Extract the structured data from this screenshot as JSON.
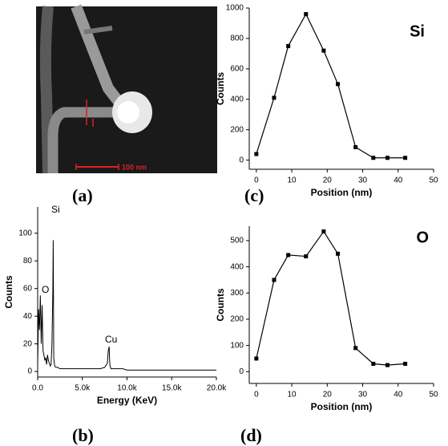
{
  "image_panel": {
    "scale_bar_label": "100 nm",
    "panel_label": "(a)"
  },
  "chart_data": [
    {
      "type": "line",
      "panel_label": "(b)",
      "xlabel": "Energy (KeV)",
      "ylabel": "Counts",
      "x": [
        0,
        100,
        200,
        300,
        400,
        500,
        600,
        700,
        800,
        900,
        1000,
        1100,
        1200,
        1300,
        1400,
        1500,
        1600,
        1700,
        1740,
        1800,
        1900,
        2000,
        2200,
        2500,
        3000,
        3500,
        4000,
        4500,
        5000,
        5500,
        6000,
        6500,
        7000,
        7500,
        7800,
        7900,
        8000,
        8050,
        8100,
        8200,
        8400,
        8800,
        9500,
        10000,
        11000,
        12000,
        13000,
        14000,
        15000,
        16000,
        17000,
        18000,
        19000,
        20000
      ],
      "series": [
        {
          "color": "#000000",
          "marker": false,
          "values": [
            5,
            45,
            30,
            55,
            20,
            48,
            15,
            12,
            8,
            10,
            5,
            12,
            8,
            6,
            4,
            5,
            20,
            60,
            95,
            10,
            4,
            3,
            3,
            2,
            2,
            2,
            2,
            2,
            2,
            2,
            2,
            2,
            2,
            3,
            6,
            15,
            18,
            8,
            4,
            2,
            2,
            2,
            2,
            1,
            1,
            1,
            1,
            1,
            1,
            1,
            1,
            1,
            1,
            1
          ]
        }
      ],
      "annotations": [
        "Si",
        "O",
        "Cu"
      ],
      "xlim": [
        0,
        20000
      ],
      "ylim": [
        -4,
        119
      ],
      "xticks": [
        {
          "value": 0,
          "label": "0.0"
        },
        {
          "value": 5000,
          "label": "5.0k"
        },
        {
          "value": 10000,
          "label": "10.0k"
        },
        {
          "value": 15000,
          "label": "15.0k"
        },
        {
          "value": 20000,
          "label": "20.0k"
        }
      ],
      "yticks": [
        0,
        20,
        40,
        60,
        80,
        100
      ]
    },
    {
      "type": "line",
      "panel_label": "(c)",
      "xlabel": "Position (nm)",
      "ylabel": "Counts",
      "x": [
        0,
        5,
        9,
        14,
        19,
        23,
        28,
        33,
        37,
        42
      ],
      "series": [
        {
          "color": "#000000",
          "marker": true,
          "values": [
            40,
            410,
            750,
            960,
            720,
            500,
            85,
            15,
            15,
            15
          ]
        }
      ],
      "annotations": [
        "Si"
      ],
      "xlim": [
        -2,
        50
      ],
      "ylim": [
        -60,
        1000
      ],
      "xticks": [
        0,
        10,
        20,
        30,
        40,
        50
      ],
      "yticks": [
        0,
        200,
        400,
        600,
        800,
        1000
      ]
    },
    {
      "type": "line",
      "panel_label": "(d)",
      "xlabel": "Position (nm)",
      "ylabel": "Counts",
      "x": [
        0,
        5,
        9,
        14,
        19,
        23,
        28,
        33,
        37,
        42
      ],
      "series": [
        {
          "color": "#000000",
          "marker": true,
          "values": [
            50,
            350,
            445,
            440,
            535,
            450,
            90,
            30,
            25,
            30
          ]
        }
      ],
      "annotations": [
        "O"
      ],
      "xlim": [
        -2,
        50
      ],
      "ylim": [
        -45,
        555
      ],
      "xticks": [
        0,
        10,
        20,
        30,
        40,
        50
      ],
      "yticks": [
        0,
        100,
        200,
        300,
        400,
        500
      ]
    }
  ]
}
